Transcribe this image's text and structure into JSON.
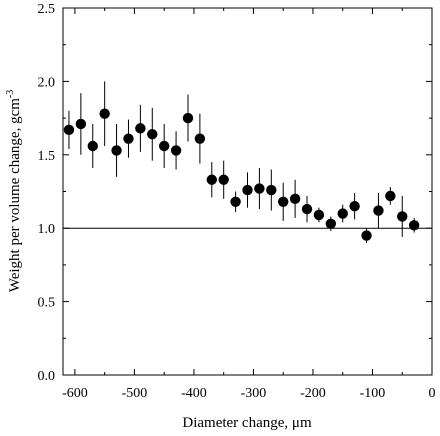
{
  "chart_data": {
    "type": "scatter",
    "xlabel": "Diameter change, μm",
    "ylabel": "Weight per volume change,  gcm",
    "ylabel_superscript": "-3",
    "xlim": [
      -620,
      0
    ],
    "ylim": [
      0.0,
      2.5
    ],
    "x_ticks": [
      "-600",
      "-500",
      "-400",
      "-300",
      "-200",
      "-100",
      "0"
    ],
    "y_ticks": [
      "0.0",
      "0.5",
      "1.0",
      "1.5",
      "2.0",
      "2.5"
    ],
    "x_tick_values": [
      -600,
      -500,
      -400,
      -300,
      -200,
      -100,
      0
    ],
    "y_tick_values": [
      0.0,
      0.5,
      1.0,
      1.5,
      2.0,
      2.5
    ],
    "reference_line_y": 1.0,
    "grid": false,
    "legend": "none",
    "marker_color": "#000000",
    "series": [
      {
        "points": [
          {
            "x": -610,
            "y": 1.67,
            "err": 0.13
          },
          {
            "x": -590,
            "y": 1.71,
            "err": 0.21
          },
          {
            "x": -570,
            "y": 1.56,
            "err": 0.15
          },
          {
            "x": -550,
            "y": 1.78,
            "err": 0.22
          },
          {
            "x": -530,
            "y": 1.53,
            "err": 0.18
          },
          {
            "x": -510,
            "y": 1.61,
            "err": 0.13
          },
          {
            "x": -490,
            "y": 1.68,
            "err": 0.16
          },
          {
            "x": -470,
            "y": 1.64,
            "err": 0.18
          },
          {
            "x": -450,
            "y": 1.56,
            "err": 0.15
          },
          {
            "x": -430,
            "y": 1.53,
            "err": 0.13
          },
          {
            "x": -410,
            "y": 1.75,
            "err": 0.16
          },
          {
            "x": -390,
            "y": 1.61,
            "err": 0.17
          },
          {
            "x": -370,
            "y": 1.33,
            "err": 0.12
          },
          {
            "x": -350,
            "y": 1.33,
            "err": 0.13
          },
          {
            "x": -330,
            "y": 1.18,
            "err": 0.07
          },
          {
            "x": -310,
            "y": 1.26,
            "err": 0.12
          },
          {
            "x": -290,
            "y": 1.27,
            "err": 0.14
          },
          {
            "x": -270,
            "y": 1.26,
            "err": 0.14
          },
          {
            "x": -250,
            "y": 1.18,
            "err": 0.13
          },
          {
            "x": -230,
            "y": 1.2,
            "err": 0.13
          },
          {
            "x": -210,
            "y": 1.13,
            "err": 0.09
          },
          {
            "x": -190,
            "y": 1.09,
            "err": 0.05
          },
          {
            "x": -170,
            "y": 1.03,
            "err": 0.05
          },
          {
            "x": -150,
            "y": 1.1,
            "err": 0.06
          },
          {
            "x": -130,
            "y": 1.15,
            "err": 0.09
          },
          {
            "x": -110,
            "y": 0.95,
            "err": 0.05
          },
          {
            "x": -90,
            "y": 1.12,
            "err": 0.12
          },
          {
            "x": -70,
            "y": 1.22,
            "err": 0.06
          },
          {
            "x": -50,
            "y": 1.08,
            "err": 0.14
          },
          {
            "x": -30,
            "y": 1.02,
            "err": 0.05
          }
        ]
      }
    ]
  }
}
